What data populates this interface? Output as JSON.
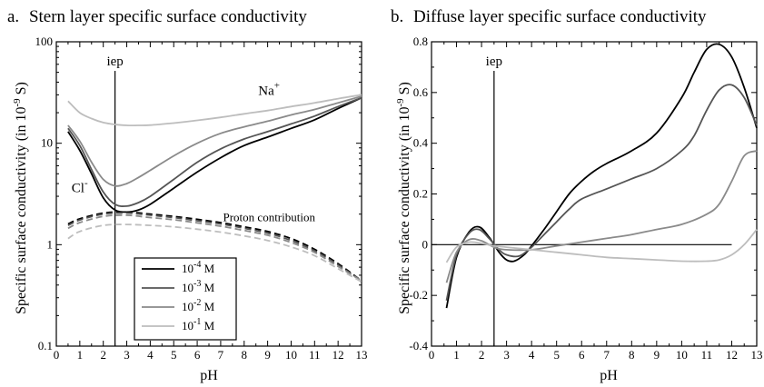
{
  "chart_data": [
    {
      "type": "line",
      "panel_label": "a.",
      "title": "Stern layer specific surface conductivity",
      "xlabel": "pH",
      "ylabel": "Specific surface conductivity (in 10",
      "ylabel_sup": "-9",
      "ylabel_end": " S)",
      "xlim": [
        0,
        13
      ],
      "ylim": [
        0.1,
        100
      ],
      "yscale": "log",
      "xticks": [
        0,
        1,
        2,
        3,
        4,
        5,
        6,
        7,
        8,
        9,
        10,
        11,
        12,
        13
      ],
      "xtick_labels": [
        "0",
        "1",
        "2",
        "3",
        "4",
        "5",
        "6",
        "7",
        "8",
        "9",
        "10",
        "11",
        "12",
        "13"
      ],
      "yticks": [
        0.1,
        1,
        10,
        100
      ],
      "ytick_labels": [
        "0.1",
        "1",
        "10",
        "100"
      ],
      "vline": {
        "x": 2.5,
        "label": "iep"
      },
      "annotations": [
        {
          "text": "Na",
          "sup": "+",
          "x": 8.6,
          "y": 30
        },
        {
          "text": "Cl",
          "sup": "-",
          "x": 0.65,
          "y": 3.3
        },
        {
          "text": "Proton contribution",
          "sup": "",
          "x": 7.1,
          "y": 1.7
        }
      ],
      "legend": {
        "placement": "bottom-center",
        "entries": [
          {
            "base": "10",
            "exp": "-4",
            "unit": " M",
            "color": "#000000"
          },
          {
            "base": "10",
            "exp": "-3",
            "unit": " M",
            "color": "#555555"
          },
          {
            "base": "10",
            "exp": "-2",
            "unit": " M",
            "color": "#8a8a8a"
          },
          {
            "base": "10",
            "exp": "-1",
            "unit": " M",
            "color": "#bdbdbd"
          }
        ]
      },
      "series": [
        {
          "color": "#000000",
          "style": "solid",
          "x": [
            0.5,
            1,
            1.5,
            2,
            2.5,
            3,
            3.5,
            4,
            5,
            6,
            7,
            8,
            9,
            10,
            11,
            12,
            13
          ],
          "y": [
            13,
            8.5,
            5,
            2.9,
            2.2,
            2.1,
            2.2,
            2.5,
            3.6,
            5.2,
            7.2,
            9.5,
            11.5,
            14,
            17,
            22,
            28
          ]
        },
        {
          "color": "#555555",
          "style": "solid",
          "x": [
            0.5,
            1,
            1.5,
            2,
            2.5,
            3,
            3.5,
            4,
            5,
            6,
            7,
            8,
            9,
            10,
            11,
            12,
            13
          ],
          "y": [
            14,
            9.5,
            5.5,
            3.3,
            2.5,
            2.4,
            2.6,
            3,
            4.4,
            6.5,
            8.8,
            11,
            13,
            15.5,
            18.5,
            23,
            28
          ]
        },
        {
          "color": "#8a8a8a",
          "style": "solid",
          "x": [
            0.5,
            1,
            1.5,
            2,
            2.5,
            3,
            3.5,
            4,
            5,
            6,
            7,
            8,
            9,
            10,
            11,
            12,
            13
          ],
          "y": [
            15,
            10.5,
            6.5,
            4.4,
            3.8,
            4,
            4.6,
            5.4,
            7.5,
            10,
            12.5,
            14.5,
            16.5,
            19,
            21.5,
            25,
            29
          ]
        },
        {
          "color": "#bdbdbd",
          "style": "solid",
          "x": [
            0.5,
            1,
            1.5,
            2,
            2.5,
            3,
            3.5,
            4,
            5,
            6,
            7,
            8,
            9,
            10,
            11,
            12,
            13
          ],
          "y": [
            26,
            20,
            17.5,
            16,
            15.3,
            15,
            15,
            15.1,
            15.8,
            16.8,
            18,
            19.5,
            21,
            23,
            25,
            27.5,
            30
          ]
        },
        {
          "color": "#000000",
          "style": "dashed",
          "x": [
            0.5,
            1,
            2,
            3,
            4,
            5,
            6,
            7,
            8,
            9,
            10,
            11,
            12,
            13
          ],
          "y": [
            1.6,
            1.8,
            2.05,
            2.1,
            2,
            1.9,
            1.78,
            1.65,
            1.5,
            1.35,
            1.15,
            0.9,
            0.65,
            0.44
          ]
        },
        {
          "color": "#555555",
          "style": "dashed",
          "x": [
            0.5,
            1,
            2,
            3,
            4,
            5,
            6,
            7,
            8,
            9,
            10,
            11,
            12,
            13
          ],
          "y": [
            1.55,
            1.75,
            2,
            2.05,
            1.95,
            1.85,
            1.72,
            1.6,
            1.45,
            1.3,
            1.1,
            0.87,
            0.63,
            0.44
          ]
        },
        {
          "color": "#8a8a8a",
          "style": "dashed",
          "x": [
            0.5,
            1,
            2,
            3,
            4,
            5,
            6,
            7,
            8,
            9,
            10,
            11,
            12,
            13
          ],
          "y": [
            1.45,
            1.65,
            1.9,
            1.95,
            1.85,
            1.76,
            1.64,
            1.52,
            1.38,
            1.24,
            1.05,
            0.84,
            0.61,
            0.44
          ]
        },
        {
          "color": "#bdbdbd",
          "style": "dashed",
          "x": [
            0.5,
            1,
            2,
            3,
            4,
            5,
            6,
            7,
            8,
            9,
            10,
            11,
            12,
            13
          ],
          "y": [
            1.15,
            1.35,
            1.55,
            1.58,
            1.55,
            1.5,
            1.42,
            1.33,
            1.22,
            1.1,
            0.95,
            0.78,
            0.58,
            0.43
          ]
        }
      ]
    },
    {
      "type": "line",
      "panel_label": "b.",
      "title": "Diffuse layer specific surface conductivity",
      "xlabel": "pH",
      "ylabel": "Specific surface conductivity (in 10",
      "ylabel_sup": "-9",
      "ylabel_end": " S)",
      "xlim": [
        0,
        13
      ],
      "ylim": [
        -0.4,
        0.8
      ],
      "yscale": "linear",
      "xticks": [
        0,
        1,
        2,
        3,
        4,
        5,
        6,
        7,
        8,
        9,
        10,
        11,
        12,
        13
      ],
      "xtick_labels": [
        "0",
        "1",
        "2",
        "3",
        "4",
        "5",
        "6",
        "7",
        "8",
        "9",
        "10",
        "11",
        "12",
        "13"
      ],
      "yticks": [
        -0.4,
        -0.2,
        0,
        0.2,
        0.4,
        0.6,
        0.8
      ],
      "ytick_labels": [
        "-0.4",
        "-0.2",
        "0",
        "0.2",
        "0.4",
        "0.6",
        "0.8"
      ],
      "vline": {
        "x": 2.5,
        "label": "iep"
      },
      "hline": {
        "y": 0,
        "xmax": 12
      },
      "series": [
        {
          "color": "#000000",
          "style": "solid",
          "x": [
            0.6,
            1,
            1.5,
            1.9,
            2.3,
            2.7,
            3,
            3.3,
            3.7,
            4,
            4.5,
            5,
            5.5,
            6,
            6.5,
            7,
            8,
            9,
            10,
            10.5,
            11,
            11.5,
            12,
            12.5,
            13
          ],
          "y": [
            -0.25,
            -0.05,
            0.05,
            0.07,
            0.03,
            -0.03,
            -0.06,
            -0.065,
            -0.04,
            -0.005,
            0.06,
            0.13,
            0.2,
            0.25,
            0.29,
            0.32,
            0.37,
            0.44,
            0.58,
            0.68,
            0.77,
            0.79,
            0.74,
            0.62,
            0.46
          ]
        },
        {
          "color": "#555555",
          "style": "solid",
          "x": [
            0.6,
            1,
            1.5,
            1.9,
            2.3,
            2.7,
            3,
            3.5,
            4,
            4.5,
            5,
            5.5,
            6,
            7,
            8,
            9,
            10,
            10.5,
            11,
            11.5,
            12,
            12.5,
            13
          ],
          "y": [
            -0.22,
            -0.04,
            0.045,
            0.06,
            0.025,
            -0.02,
            -0.04,
            -0.045,
            -0.01,
            0.04,
            0.09,
            0.14,
            0.18,
            0.22,
            0.26,
            0.3,
            0.37,
            0.43,
            0.53,
            0.61,
            0.63,
            0.58,
            0.47
          ]
        },
        {
          "color": "#8a8a8a",
          "style": "solid",
          "x": [
            0.6,
            1,
            1.5,
            2,
            2.5,
            3,
            4,
            5,
            6,
            7,
            8,
            9,
            10,
            11,
            11.5,
            12,
            12.5,
            13
          ],
          "y": [
            -0.15,
            -0.03,
            0.02,
            0.015,
            -0.01,
            -0.02,
            -0.02,
            -0.005,
            0.01,
            0.025,
            0.04,
            0.06,
            0.08,
            0.12,
            0.16,
            0.25,
            0.35,
            0.37
          ]
        },
        {
          "color": "#bdbdbd",
          "style": "solid",
          "x": [
            0.6,
            1,
            1.5,
            2,
            2.5,
            3,
            4,
            5,
            6,
            7,
            8,
            9,
            10,
            11,
            11.5,
            12,
            12.5,
            13
          ],
          "y": [
            -0.07,
            -0.01,
            0.01,
            0.005,
            -0.005,
            -0.01,
            -0.02,
            -0.03,
            -0.04,
            -0.05,
            -0.055,
            -0.06,
            -0.065,
            -0.065,
            -0.06,
            -0.04,
            0,
            0.06
          ]
        }
      ]
    }
  ]
}
